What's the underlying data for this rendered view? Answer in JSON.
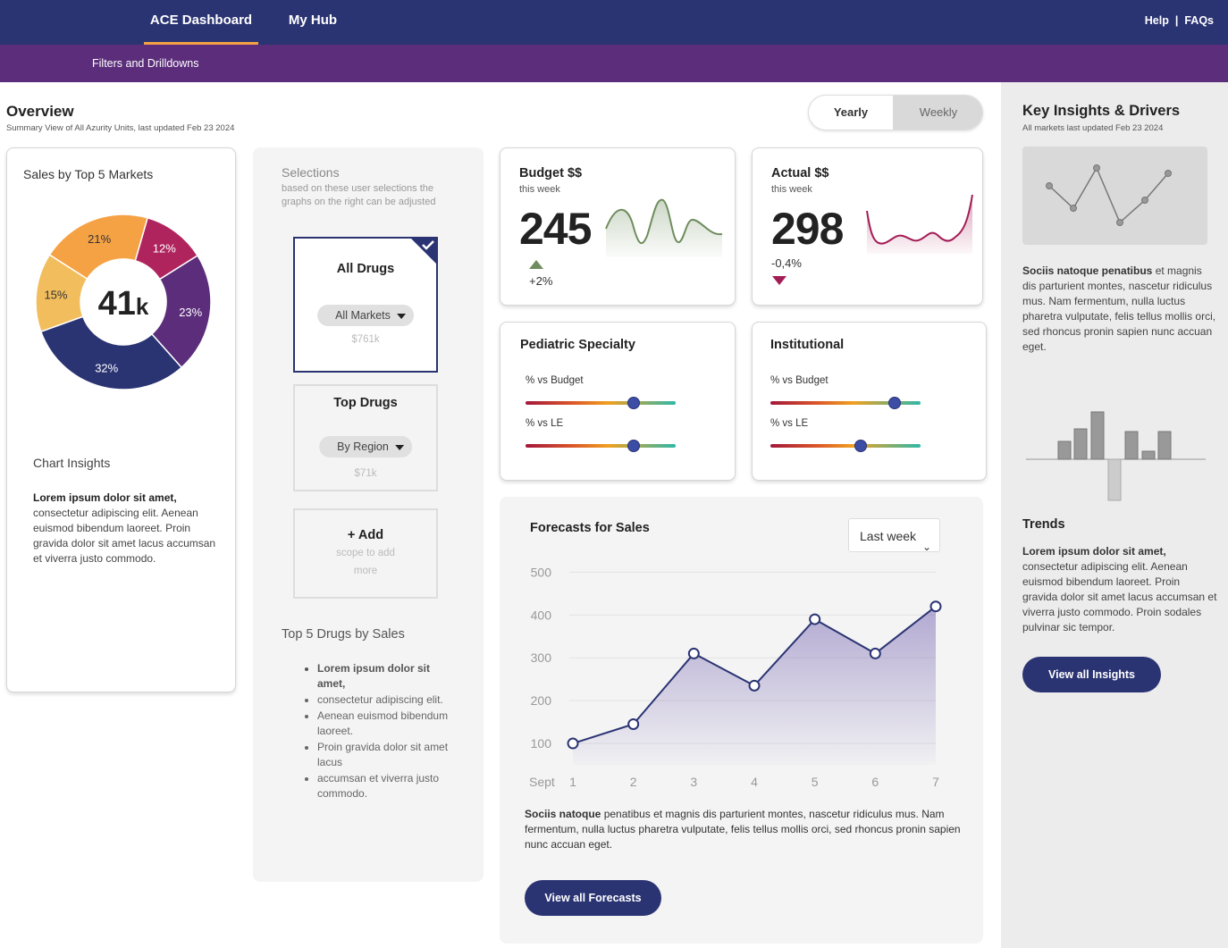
{
  "nav": {
    "tabs": [
      {
        "label": "ACE Dashboard",
        "active": true
      },
      {
        "label": "My Hub",
        "active": false
      }
    ],
    "help": "Help",
    "separator": "|",
    "faqs": "FAQs"
  },
  "subnav": {
    "filters": "Filters and Drilldowns"
  },
  "overview": {
    "title": "Overview",
    "subtitle": "Summary View of All Azurity Units, last updated Feb 23 2024",
    "toggle": {
      "yearly": "Yearly",
      "weekly": "Weekly",
      "selected": "Yearly"
    }
  },
  "sales": {
    "title": "Sales by Top 5 Markets",
    "center_value": "41",
    "center_unit": "k",
    "segments": [
      {
        "label": "12%",
        "value": 12,
        "color": "#b0245e"
      },
      {
        "label": "23%",
        "value": 23,
        "color": "#5b2d7b"
      },
      {
        "label": "32%",
        "value": 32,
        "color": "#2b3473"
      },
      {
        "label": "15%",
        "value": 15,
        "color": "#f2bd5c"
      },
      {
        "label": "21%",
        "value": 21,
        "color": "#f5a245"
      }
    ],
    "insights_title": "Chart Insights",
    "insights_bold": "Lorem ipsum dolor sit amet,",
    "insights_text": "consectetur adipiscing elit. Aenean euismod bibendum laoreet. Proin gravida dolor sit amet lacus accumsan et viverra justo commodo."
  },
  "selections": {
    "title": "Selections",
    "desc": "based on these user  selections the graphs on the right can be adjusted",
    "all_drugs": {
      "title": "All Drugs",
      "pill": "All Markets",
      "amount": "$761k"
    },
    "top_drugs": {
      "title": "Top Drugs",
      "pill": "By Region",
      "amount": "$71k"
    },
    "add": {
      "title": "+ Add",
      "line1": "scope to add",
      "line2": "more"
    },
    "top5_title": "Top 5 Drugs by Sales",
    "top5_items": [
      "Lorem ipsum dolor sit amet,",
      "consectetur adipiscing elit.",
      "Aenean euismod bibendum laoreet.",
      "Proin gravida dolor sit amet lacus",
      "accumsan et viverra justo commodo."
    ]
  },
  "budget": {
    "title": "Budget  $$",
    "sub": "this week",
    "value": "245",
    "change": "+2%",
    "color": "#6f8d5e"
  },
  "actual": {
    "title": "Actual $$",
    "sub": "this week",
    "value": "298",
    "change": "-0,4%",
    "color": "#a31c55"
  },
  "pediatric": {
    "title": "Pediatric Specialty",
    "vs_budget_label": "% vs Budget",
    "vs_budget_level": 0.72,
    "vs_le_label": "% vs LE",
    "vs_le_level": 0.72
  },
  "institutional": {
    "title": "Institutional",
    "vs_budget_label": "% vs Budget",
    "vs_budget_level": 0.83,
    "vs_le_label": "% vs LE",
    "vs_le_level": 0.6
  },
  "forecast": {
    "title": "Forecasts for Sales",
    "select_value": "Last week",
    "text_bold": "Sociis natoque",
    "text": " penatibus et magnis dis parturient montes, nascetur ridiculus mus. Nam fermentum, nulla luctus pharetra vulputate, felis tellus mollis orci, sed rhoncus pronin sapien nunc accuan eget.",
    "button": "View all Forecasts"
  },
  "chart_data": {
    "type": "area",
    "x": [
      1,
      2,
      3,
      4,
      5,
      6,
      7
    ],
    "xlabel": "Sept",
    "series": [
      {
        "values": [
          100,
          145,
          310,
          235,
          390,
          310,
          420
        ]
      }
    ],
    "yticks": [
      100,
      200,
      300,
      400,
      500
    ],
    "ylim": [
      50,
      530
    ],
    "grid": true,
    "line_color": "#2b3473"
  },
  "insights": {
    "title": "Key Insights & Drivers",
    "subtitle": "All markets last updated Feb 23 2024",
    "text_bold": "Sociis natoque penatibus",
    "text": " et magnis dis parturient montes, nascetur ridiculus mus. Nam fermentum, nulla luctus pharetra vulputate, felis tellus mollis orci, sed rhoncus pronin sapien nunc accuan eget.",
    "trends_title": "Trends",
    "trends_bold": "Lorem ipsum dolor sit amet,",
    "trends_text": "consectetur adipiscing elit. Aenean euismod bibendum laoreet. Proin gravida dolor sit amet lacus accumsan et viverra justo commodo. Proin sodales pulvinar sic tempor.",
    "button": "View all Insights"
  }
}
